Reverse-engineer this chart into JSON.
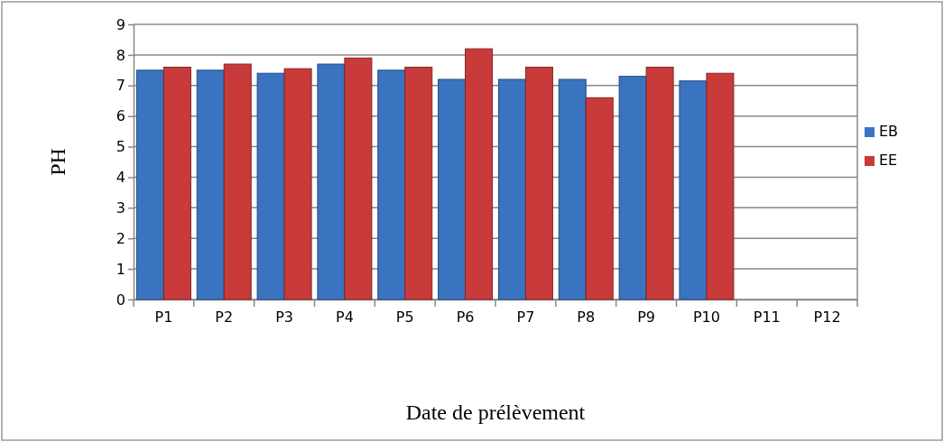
{
  "chart_data": {
    "type": "bar",
    "xlabel": "Date de prélèvement",
    "ylabel": "PH",
    "categories": [
      "P1",
      "P2",
      "P3",
      "P4",
      "P5",
      "P6",
      "P7",
      "P8",
      "P9",
      "P10",
      "P11",
      "P12"
    ],
    "series": [
      {
        "name": "EB",
        "color": "#3a73c0",
        "values": [
          7.5,
          7.5,
          7.4,
          7.7,
          7.5,
          7.2,
          7.2,
          7.2,
          7.3,
          7.15,
          null,
          null
        ]
      },
      {
        "name": "EE",
        "color": "#c93a3a",
        "values": [
          7.6,
          7.7,
          7.55,
          7.9,
          7.6,
          8.2,
          7.6,
          6.6,
          7.6,
          7.4,
          null,
          null
        ]
      }
    ],
    "ylim": [
      0,
      9
    ],
    "yticks": [
      0,
      1,
      2,
      3,
      4,
      5,
      6,
      7,
      8,
      9
    ],
    "grid": "y",
    "legend": "right"
  }
}
